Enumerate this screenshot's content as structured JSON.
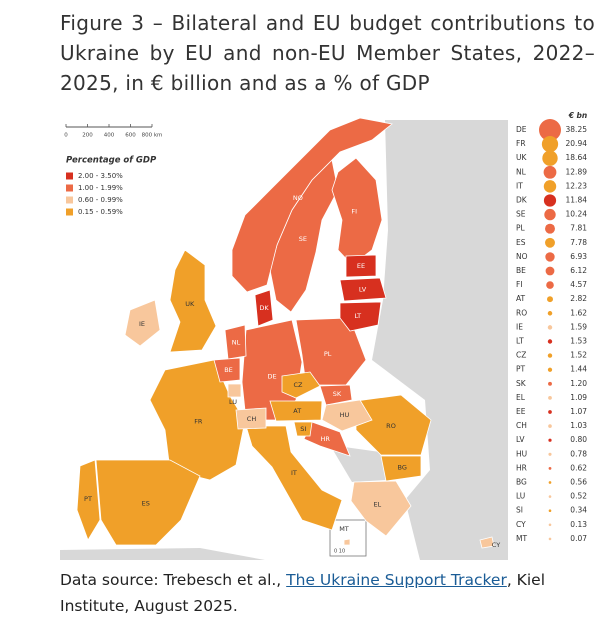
{
  "header": {
    "title": "Figure 3 – Bilateral and EU budget contributions to Ukraine by EU and non-EU Member States, 2022–2025, in € billion and as a % of GDP"
  },
  "map": {
    "scale": {
      "ticks": [
        "0",
        "200",
        "400",
        "600",
        "800 km"
      ]
    },
    "legend": {
      "title": "Percentage of GDP",
      "items": [
        {
          "label": "2.00 - 3.50%",
          "color": "#d7301f"
        },
        {
          "label": "1.00 - 1.99%",
          "color": "#ec6a45"
        },
        {
          "label": "0.60 - 0.99%",
          "color": "#f8c79c"
        },
        {
          "label": "0.15 - 0.59%",
          "color": "#f0a029"
        }
      ]
    },
    "unit": "€ bn",
    "countries": [
      {
        "code": "DE",
        "value": 38.25,
        "group": 1
      },
      {
        "code": "FR",
        "value": 20.94,
        "group": 3
      },
      {
        "code": "UK",
        "value": 18.64,
        "group": 3
      },
      {
        "code": "NL",
        "value": 12.89,
        "group": 1
      },
      {
        "code": "IT",
        "value": 12.23,
        "group": 3
      },
      {
        "code": "DK",
        "value": 11.84,
        "group": 0
      },
      {
        "code": "SE",
        "value": 10.24,
        "group": 1
      },
      {
        "code": "PL",
        "value": 7.81,
        "group": 1
      },
      {
        "code": "ES",
        "value": 7.78,
        "group": 3
      },
      {
        "code": "NO",
        "value": 6.93,
        "group": 1
      },
      {
        "code": "BE",
        "value": 6.12,
        "group": 1
      },
      {
        "code": "FI",
        "value": 4.57,
        "group": 1
      },
      {
        "code": "AT",
        "value": 2.82,
        "group": 3
      },
      {
        "code": "RO",
        "value": 1.62,
        "group": 3
      },
      {
        "code": "IE",
        "value": 1.59,
        "group": 2
      },
      {
        "code": "LT",
        "value": 1.53,
        "group": 0
      },
      {
        "code": "CZ",
        "value": 1.52,
        "group": 3
      },
      {
        "code": "PT",
        "value": 1.44,
        "group": 3
      },
      {
        "code": "SK",
        "value": 1.2,
        "value_label": "1.20",
        "group": 1
      },
      {
        "code": "EL",
        "value": 1.09,
        "group": 2
      },
      {
        "code": "EE",
        "value": 1.07,
        "group": 0
      },
      {
        "code": "CH",
        "value": 1.03,
        "group": 2
      },
      {
        "code": "LV",
        "value": 0.8,
        "value_label": "0.80",
        "group": 0
      },
      {
        "code": "HU",
        "value": 0.78,
        "group": 2
      },
      {
        "code": "HR",
        "value": 0.62,
        "group": 1
      },
      {
        "code": "BG",
        "value": 0.56,
        "group": 3
      },
      {
        "code": "LU",
        "value": 0.52,
        "group": 2
      },
      {
        "code": "SI",
        "value": 0.34,
        "group": 3
      },
      {
        "code": "CY",
        "value": 0.13,
        "group": 2
      },
      {
        "code": "MT",
        "value": 0.07,
        "group": 2
      }
    ],
    "inset_scale": "0 10"
  },
  "source": {
    "prefix": "Data source: Trebesch et al., ",
    "link": "The Ukraine Support Tracker",
    "suffix": ", Kiel Institute, August 2025."
  }
}
